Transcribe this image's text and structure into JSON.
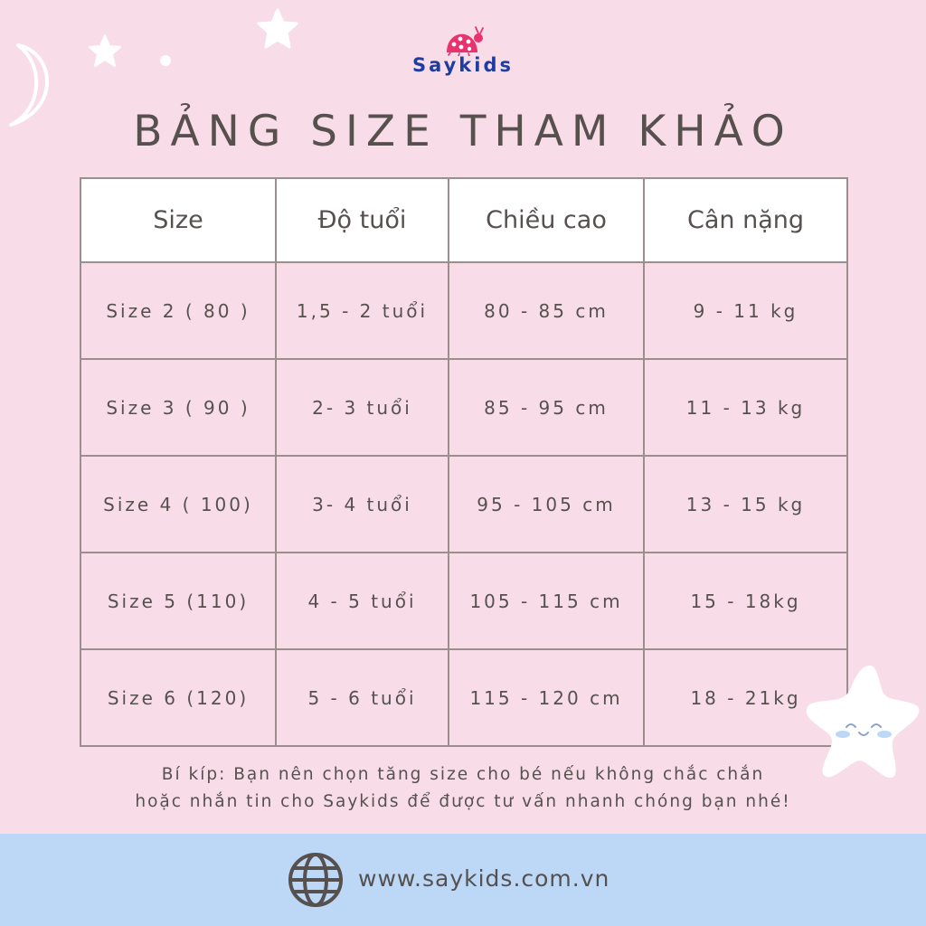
{
  "brand": {
    "name": "Saykids"
  },
  "title": "BẢNG SIZE THAM KHẢO",
  "table": {
    "headers": [
      "Size",
      "Độ tuổi",
      "Chiều cao",
      "Cân nặng"
    ],
    "rows": [
      [
        "Size 2 ( 80 )",
        "1,5 - 2 tuổi",
        "80 - 85 cm",
        "9 - 11 kg"
      ],
      [
        "Size 3 ( 90 )",
        "2- 3 tuổi",
        "85 - 95 cm",
        "11 - 13 kg"
      ],
      [
        "Size 4 ( 100)",
        "3- 4 tuổi",
        "95 - 105 cm",
        "13 - 15 kg"
      ],
      [
        "Size 5 (110)",
        "4 - 5 tuổi",
        "105 - 115 cm",
        "15  - 18kg"
      ],
      [
        "Size 6 (120)",
        "5 - 6 tuổi",
        "115 - 120 cm",
        "18 - 21kg"
      ]
    ]
  },
  "tip": {
    "line1": "Bí kíp: Bạn nên chọn tăng size cho bé nếu không chắc chắn",
    "line2": "hoặc nhắn tin cho Saykids để được tư vấn nhanh chóng bạn nhé!"
  },
  "footer": {
    "website": "www.saykids.com.vn"
  },
  "colors": {
    "background": "#f8dde9",
    "footer": "#bcd8f6",
    "text": "#56504f",
    "border": "#9c8e8f",
    "brand_text": "#1f3d9e",
    "brand_ladybug": "#e8336e"
  },
  "icons": [
    "moon-icon",
    "star-icon",
    "ladybug-logo-icon",
    "smiling-star-icon",
    "globe-icon"
  ]
}
